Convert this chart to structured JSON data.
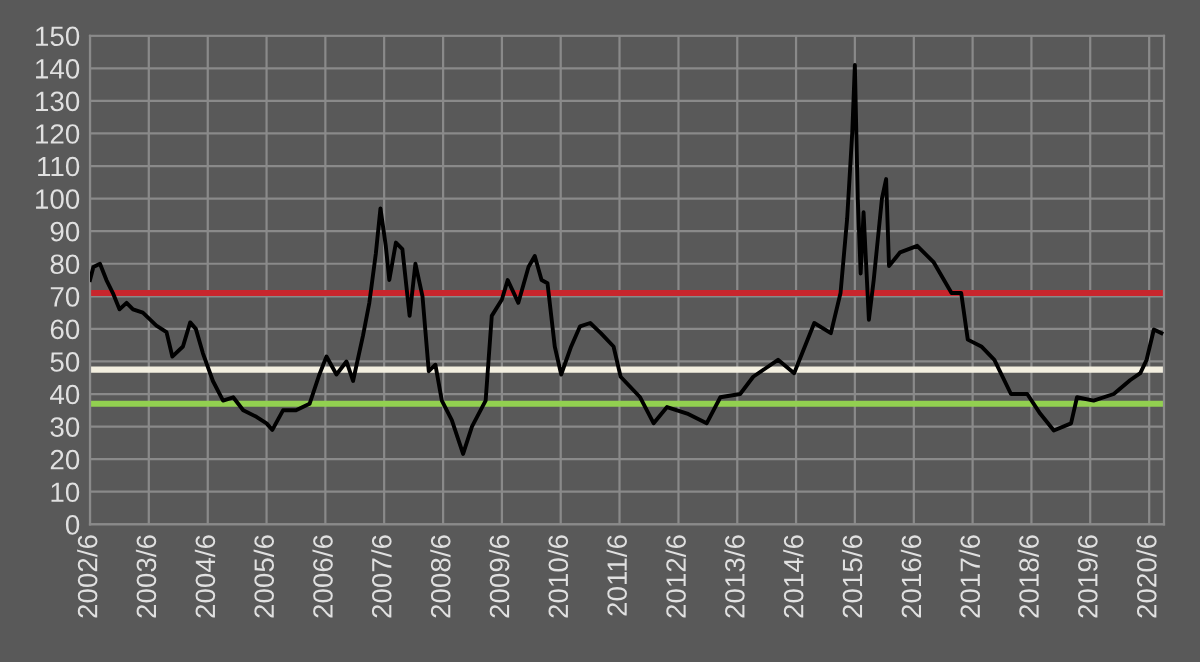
{
  "chart_data": {
    "type": "line",
    "grid": true,
    "legend": false,
    "marker": "none",
    "line_style": "solid",
    "xlim": [
      "2002-06-01",
      "2020-09-01"
    ],
    "ylim": [
      0,
      150
    ],
    "yticks": [
      0,
      10,
      20,
      30,
      40,
      50,
      60,
      70,
      80,
      90,
      100,
      110,
      120,
      130,
      140,
      150
    ],
    "xticks": [
      {
        "value": "2002-06",
        "label": "2002/6"
      },
      {
        "value": "2003-06",
        "label": "2003/6"
      },
      {
        "value": "2004-06",
        "label": "2004/6"
      },
      {
        "value": "2005-06",
        "label": "2005/6"
      },
      {
        "value": "2006-06",
        "label": "2006/6"
      },
      {
        "value": "2007-06",
        "label": "2007/6"
      },
      {
        "value": "2008-06",
        "label": "2008/6"
      },
      {
        "value": "2009-06",
        "label": "2009/6"
      },
      {
        "value": "2010-06",
        "label": "2010/6"
      },
      {
        "value": "2011-06",
        "label": "2011/6"
      },
      {
        "value": "2012-06",
        "label": "2012/6"
      },
      {
        "value": "2013-06",
        "label": "2013/6"
      },
      {
        "value": "2014-06",
        "label": "2014/6"
      },
      {
        "value": "2015-06",
        "label": "2015/6"
      },
      {
        "value": "2016-06",
        "label": "2016/6"
      },
      {
        "value": "2017-06",
        "label": "2017/6"
      },
      {
        "value": "2018-06",
        "label": "2018/6"
      },
      {
        "value": "2019-06",
        "label": "2019/6"
      },
      {
        "value": "2020-06",
        "label": "2020/6"
      }
    ],
    "series": [
      {
        "color": "#000000",
        "x": [
          "2002-06-01",
          "2002-06-22",
          "2002-08-02",
          "2002-09-11",
          "2002-10-21",
          "2002-12-01",
          "2003-01-14",
          "2003-02-23",
          "2003-04-25",
          "2003-07-18",
          "2003-09-19",
          "2003-10-25",
          "2003-12-30",
          "2004-02-13",
          "2004-03-19",
          "2004-05-02",
          "2004-07-03",
          "2004-09-04",
          "2004-11-06",
          "2005-01-07",
          "2005-03-30",
          "2005-06-01",
          "2005-07-07",
          "2005-09-11",
          "2005-12-01",
          "2006-02-23",
          "2006-04-25",
          "2006-06-08",
          "2006-08-09",
          "2006-10-10",
          "2006-11-20",
          "2007-01-21",
          "2007-03-01",
          "2007-04-10",
          "2007-05-09",
          "2007-06-11",
          "2007-07-03",
          "2007-08-13",
          "2007-09-22",
          "2007-11-06",
          "2007-12-12",
          "2008-01-25",
          "2008-03-04",
          "2008-04-14",
          "2008-05-24",
          "2008-07-25",
          "2008-10-03",
          "2008-11-27",
          "2009-02-20",
          "2009-03-30",
          "2009-06-01",
          "2009-07-07",
          "2009-09-11",
          "2009-11-13",
          "2009-12-22",
          "2010-02-02",
          "2010-03-11",
          "2010-04-25",
          "2010-06-04",
          "2010-08-05",
          "2010-09-29",
          "2010-12-01",
          "2011-02-05",
          "2011-04-25",
          "2011-06-08",
          "2011-10-07",
          "2011-12-30",
          "2012-03-22",
          "2012-07-25",
          "2012-11-23",
          "2013-02-16",
          "2013-06-19",
          "2013-09-08",
          "2014-02-09",
          "2014-05-20",
          "2014-09-22",
          "2015-01-03",
          "2015-03-04",
          "2015-04-14",
          "2015-05-16",
          "2015-06-01",
          "2015-06-19",
          "2015-07-07",
          "2015-07-25",
          "2015-08-27",
          "2015-09-26",
          "2015-11-16",
          "2015-12-12",
          "2015-12-30",
          "2016-03-08",
          "2016-06-22",
          "2016-10-03",
          "2017-01-21",
          "2017-03-22",
          "2017-05-02",
          "2017-07-25",
          "2017-10-14",
          "2018-01-25",
          "2018-05-06",
          "2018-07-25",
          "2018-10-18",
          "2019-02-02",
          "2019-03-11",
          "2019-06-22",
          "2019-10-25",
          "2020-02-05",
          "2020-04-07",
          "2020-05-16",
          "2020-06-30",
          "2020-08-16"
        ],
        "values": [
          75,
          79,
          80,
          75,
          71,
          66,
          68,
          66,
          65,
          61,
          59,
          51.5,
          54.6,
          62,
          60,
          52.5,
          44,
          38,
          39,
          35,
          33,
          31,
          29,
          35,
          35,
          37,
          46,
          51.5,
          46,
          50,
          44,
          58,
          68,
          83,
          97,
          85.5,
          75,
          86.5,
          84.5,
          64,
          80,
          70,
          47,
          49,
          38,
          32,
          21.6,
          30,
          38,
          64,
          69,
          75,
          68,
          79,
          82.4,
          75,
          74,
          54.6,
          46,
          54.6,
          60.8,
          61.8,
          58.7,
          54.6,
          45.3,
          39,
          31,
          36,
          34,
          31,
          39,
          40,
          45.3,
          50.5,
          46.4,
          61.8,
          58.7,
          71,
          93.8,
          120.5,
          141,
          100,
          77,
          95.8,
          62.8,
          75,
          100,
          106,
          79.3,
          83.5,
          85.5,
          80.4,
          71,
          71,
          56.7,
          54.6,
          50.5,
          40,
          40,
          34,
          28.8,
          31,
          39,
          38,
          40,
          44.3,
          46.4,
          50.5,
          59.8,
          58.7
        ]
      }
    ],
    "ref_lines": [
      {
        "axis": "y",
        "value": 71,
        "color": "#c8262d"
      },
      {
        "axis": "y",
        "value": 47.5,
        "color": "#f3efe0"
      },
      {
        "axis": "y",
        "value": 37,
        "color": "#92d050"
      }
    ]
  }
}
